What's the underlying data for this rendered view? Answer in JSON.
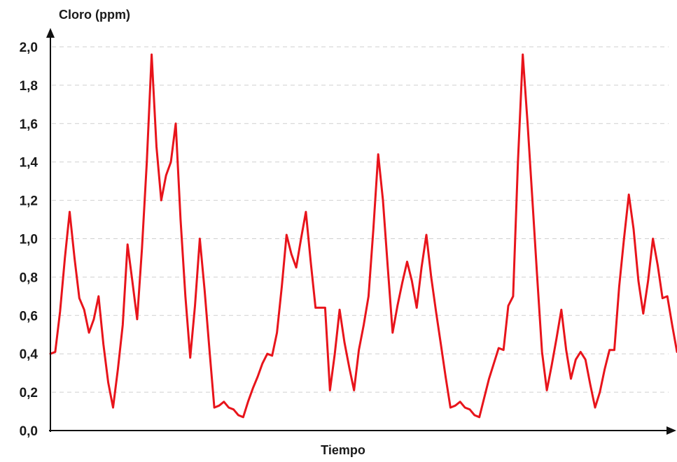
{
  "chart_data": {
    "type": "line",
    "title": "",
    "ylabel": "Cloro (ppm)",
    "xlabel": "Tiempo",
    "ylim": [
      0,
      2.0
    ],
    "yticks": [
      0.0,
      0.2,
      0.4,
      0.6,
      0.8,
      1.0,
      1.2,
      1.4,
      1.6,
      1.8,
      2.0
    ],
    "ytick_labels": [
      "0,0",
      "0,2",
      "0,4",
      "0,6",
      "0,8",
      "1,0",
      "1,2",
      "1,4",
      "1,6",
      "1,8",
      "2,0"
    ],
    "grid": true,
    "colors": {
      "line": "#e8141b",
      "axis": "#111111",
      "grid": "#cfcfcf"
    },
    "series": [
      {
        "values": [
          0.4,
          0.41,
          0.62,
          0.9,
          1.14,
          0.9,
          0.69,
          0.63,
          0.51,
          0.58,
          0.7,
          0.45,
          0.25,
          0.12,
          0.32,
          0.55,
          0.97,
          0.78,
          0.58,
          0.95,
          1.4,
          1.96,
          1.48,
          1.2,
          1.33,
          1.4,
          1.6,
          1.1,
          0.7,
          0.38,
          0.65,
          1.0,
          0.73,
          0.42,
          0.12,
          0.13,
          0.15,
          0.12,
          0.11,
          0.08,
          0.07,
          0.15,
          0.22,
          0.28,
          0.35,
          0.4,
          0.39,
          0.51,
          0.75,
          1.02,
          0.92,
          0.85,
          1.0,
          1.14,
          0.88,
          0.64,
          0.64,
          0.64,
          0.21,
          0.4,
          0.63,
          0.46,
          0.33,
          0.21,
          0.42,
          0.55,
          0.7,
          1.05,
          1.44,
          1.2,
          0.85,
          0.51,
          0.65,
          0.77,
          0.88,
          0.78,
          0.64,
          0.85,
          1.02,
          0.8,
          0.62,
          0.45,
          0.28,
          0.12,
          0.13,
          0.15,
          0.12,
          0.11,
          0.08,
          0.07,
          0.17,
          0.27,
          0.35,
          0.43,
          0.42,
          0.65,
          0.7,
          1.4,
          1.96,
          1.6,
          1.2,
          0.8,
          0.41,
          0.21,
          0.34,
          0.48,
          0.63,
          0.42,
          0.27,
          0.37,
          0.41,
          0.37,
          0.24,
          0.12,
          0.2,
          0.32,
          0.42,
          0.42,
          0.75,
          1.0,
          1.23,
          1.05,
          0.78,
          0.61,
          0.78,
          1.0,
          0.86,
          0.69,
          0.7,
          0.55,
          0.41
        ]
      }
    ]
  }
}
